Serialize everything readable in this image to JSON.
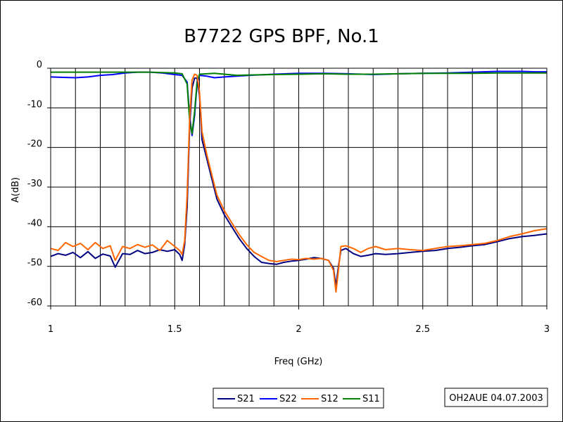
{
  "chart_data": {
    "type": "line",
    "title": "B7722 GPS BPF, No.1",
    "xlabel": "Freq (GHz)",
    "ylabel": "A(dB)",
    "xlim": [
      1,
      3
    ],
    "ylim": [
      -60,
      0
    ],
    "xticks": [
      "1",
      "1.5",
      "2",
      "2.5",
      "3"
    ],
    "yticks": [
      "0",
      "-10",
      "-20",
      "-30",
      "-40",
      "-50",
      "-60"
    ],
    "xtick_values": [
      1,
      1.5,
      2,
      2.5,
      3
    ],
    "ytick_values": [
      0,
      -10,
      -20,
      -30,
      -40,
      -50,
      -60
    ],
    "grid": true,
    "legend_position": "bottom-center",
    "annotation": "OH2AUE 04.07.2003",
    "series": [
      {
        "name": "S21",
        "color": "#000080",
        "points": [
          [
            1.0,
            -47.5
          ],
          [
            1.03,
            -46.8
          ],
          [
            1.06,
            -47.2
          ],
          [
            1.09,
            -46.5
          ],
          [
            1.12,
            -47.8
          ],
          [
            1.15,
            -46.3
          ],
          [
            1.18,
            -48.0
          ],
          [
            1.21,
            -46.9
          ],
          [
            1.24,
            -47.4
          ],
          [
            1.26,
            -50.2
          ],
          [
            1.29,
            -46.8
          ],
          [
            1.32,
            -47.0
          ],
          [
            1.35,
            -46.0
          ],
          [
            1.38,
            -46.8
          ],
          [
            1.41,
            -46.5
          ],
          [
            1.44,
            -45.8
          ],
          [
            1.47,
            -46.2
          ],
          [
            1.5,
            -45.8
          ],
          [
            1.52,
            -47.0
          ],
          [
            1.53,
            -48.5
          ],
          [
            1.54,
            -44.5
          ],
          [
            1.55,
            -35
          ],
          [
            1.56,
            -15
          ],
          [
            1.57,
            -5
          ],
          [
            1.58,
            -2.5
          ],
          [
            1.59,
            -2.5
          ],
          [
            1.6,
            -7
          ],
          [
            1.61,
            -18
          ],
          [
            1.63,
            -23
          ],
          [
            1.65,
            -28
          ],
          [
            1.67,
            -33
          ],
          [
            1.7,
            -37
          ],
          [
            1.73,
            -40
          ],
          [
            1.76,
            -43
          ],
          [
            1.79,
            -45.5
          ],
          [
            1.82,
            -47.5
          ],
          [
            1.85,
            -49
          ],
          [
            1.88,
            -49.3
          ],
          [
            1.91,
            -49.5
          ],
          [
            1.94,
            -49.0
          ],
          [
            1.97,
            -48.7
          ],
          [
            2.0,
            -48.5
          ],
          [
            2.03,
            -48.2
          ],
          [
            2.06,
            -47.8
          ],
          [
            2.09,
            -48.0
          ],
          [
            2.12,
            -48.5
          ],
          [
            2.14,
            -50.5
          ],
          [
            2.15,
            -55
          ],
          [
            2.16,
            -50
          ],
          [
            2.17,
            -46
          ],
          [
            2.19,
            -45.5
          ],
          [
            2.22,
            -46.8
          ],
          [
            2.25,
            -47.5
          ],
          [
            2.28,
            -47.2
          ],
          [
            2.31,
            -46.8
          ],
          [
            2.35,
            -47.0
          ],
          [
            2.4,
            -46.8
          ],
          [
            2.45,
            -46.5
          ],
          [
            2.5,
            -46.2
          ],
          [
            2.55,
            -46.0
          ],
          [
            2.6,
            -45.5
          ],
          [
            2.65,
            -45.2
          ],
          [
            2.7,
            -44.8
          ],
          [
            2.75,
            -44.5
          ],
          [
            2.8,
            -43.8
          ],
          [
            2.85,
            -43.0
          ],
          [
            2.9,
            -42.5
          ],
          [
            2.95,
            -42.2
          ],
          [
            3.0,
            -41.8
          ]
        ]
      },
      {
        "name": "S22",
        "color": "#0000ff",
        "points": [
          [
            1.0,
            -2.2
          ],
          [
            1.05,
            -2.3
          ],
          [
            1.1,
            -2.4
          ],
          [
            1.15,
            -2.2
          ],
          [
            1.2,
            -1.8
          ],
          [
            1.25,
            -1.6
          ],
          [
            1.3,
            -1.2
          ],
          [
            1.35,
            -1.0
          ],
          [
            1.4,
            -1.0
          ],
          [
            1.45,
            -1.2
          ],
          [
            1.5,
            -1.6
          ],
          [
            1.53,
            -1.8
          ],
          [
            1.55,
            -3.5
          ],
          [
            1.56,
            -12
          ],
          [
            1.57,
            -17
          ],
          [
            1.58,
            -12
          ],
          [
            1.59,
            -4
          ],
          [
            1.6,
            -1.8
          ],
          [
            1.63,
            -2.0
          ],
          [
            1.66,
            -2.4
          ],
          [
            1.7,
            -2.2
          ],
          [
            1.75,
            -2.0
          ],
          [
            1.8,
            -1.8
          ],
          [
            1.9,
            -1.5
          ],
          [
            2.0,
            -1.3
          ],
          [
            2.1,
            -1.3
          ],
          [
            2.2,
            -1.4
          ],
          [
            2.3,
            -1.6
          ],
          [
            2.4,
            -1.4
          ],
          [
            2.5,
            -1.3
          ],
          [
            2.6,
            -1.2
          ],
          [
            2.7,
            -1.0
          ],
          [
            2.8,
            -0.8
          ],
          [
            2.9,
            -0.8
          ],
          [
            2.95,
            -0.9
          ],
          [
            3.0,
            -0.9
          ]
        ]
      },
      {
        "name": "S12",
        "color": "#ff6600",
        "points": [
          [
            1.0,
            -45.5
          ],
          [
            1.03,
            -46.0
          ],
          [
            1.06,
            -44.0
          ],
          [
            1.09,
            -45.0
          ],
          [
            1.12,
            -44.2
          ],
          [
            1.15,
            -45.8
          ],
          [
            1.18,
            -44.0
          ],
          [
            1.21,
            -45.5
          ],
          [
            1.24,
            -44.8
          ],
          [
            1.26,
            -48.5
          ],
          [
            1.29,
            -45.0
          ],
          [
            1.32,
            -45.5
          ],
          [
            1.35,
            -44.5
          ],
          [
            1.38,
            -45.2
          ],
          [
            1.41,
            -44.6
          ],
          [
            1.44,
            -46.0
          ],
          [
            1.47,
            -43.5
          ],
          [
            1.5,
            -45.0
          ],
          [
            1.52,
            -46.0
          ],
          [
            1.53,
            -47.0
          ],
          [
            1.54,
            -43.5
          ],
          [
            1.55,
            -32
          ],
          [
            1.56,
            -13
          ],
          [
            1.57,
            -3
          ],
          [
            1.58,
            -1.5
          ],
          [
            1.59,
            -1.8
          ],
          [
            1.6,
            -6
          ],
          [
            1.61,
            -16
          ],
          [
            1.63,
            -22
          ],
          [
            1.65,
            -27
          ],
          [
            1.67,
            -32
          ],
          [
            1.7,
            -36
          ],
          [
            1.73,
            -39
          ],
          [
            1.76,
            -42
          ],
          [
            1.79,
            -44.5
          ],
          [
            1.82,
            -46.5
          ],
          [
            1.85,
            -47.5
          ],
          [
            1.88,
            -48.5
          ],
          [
            1.91,
            -48.8
          ],
          [
            1.94,
            -48.5
          ],
          [
            1.97,
            -48.2
          ],
          [
            2.0,
            -48.3
          ],
          [
            2.03,
            -48.0
          ],
          [
            2.06,
            -48.2
          ],
          [
            2.09,
            -48.0
          ],
          [
            2.12,
            -48.5
          ],
          [
            2.14,
            -51.0
          ],
          [
            2.15,
            -56.5
          ],
          [
            2.16,
            -51
          ],
          [
            2.17,
            -45
          ],
          [
            2.19,
            -44.8
          ],
          [
            2.22,
            -45.5
          ],
          [
            2.25,
            -46.5
          ],
          [
            2.28,
            -45.5
          ],
          [
            2.31,
            -45.0
          ],
          [
            2.35,
            -45.8
          ],
          [
            2.4,
            -45.5
          ],
          [
            2.45,
            -45.8
          ],
          [
            2.5,
            -46.0
          ],
          [
            2.55,
            -45.5
          ],
          [
            2.6,
            -45.0
          ],
          [
            2.65,
            -44.8
          ],
          [
            2.7,
            -44.5
          ],
          [
            2.75,
            -44.2
          ],
          [
            2.8,
            -43.5
          ],
          [
            2.85,
            -42.5
          ],
          [
            2.9,
            -41.8
          ],
          [
            2.95,
            -41.0
          ],
          [
            3.0,
            -40.5
          ]
        ]
      },
      {
        "name": "S11",
        "color": "#008000",
        "points": [
          [
            1.0,
            -1.0
          ],
          [
            1.1,
            -1.0
          ],
          [
            1.2,
            -1.0
          ],
          [
            1.3,
            -1.0
          ],
          [
            1.4,
            -1.0
          ],
          [
            1.5,
            -1.2
          ],
          [
            1.53,
            -1.4
          ],
          [
            1.55,
            -4
          ],
          [
            1.56,
            -13
          ],
          [
            1.57,
            -16.5
          ],
          [
            1.58,
            -11
          ],
          [
            1.59,
            -3.5
          ],
          [
            1.6,
            -1.5
          ],
          [
            1.63,
            -1.4
          ],
          [
            1.66,
            -1.3
          ],
          [
            1.7,
            -1.5
          ],
          [
            1.75,
            -1.8
          ],
          [
            1.8,
            -1.7
          ],
          [
            1.9,
            -1.6
          ],
          [
            2.0,
            -1.5
          ],
          [
            2.1,
            -1.4
          ],
          [
            2.2,
            -1.5
          ],
          [
            2.3,
            -1.5
          ],
          [
            2.4,
            -1.4
          ],
          [
            2.5,
            -1.3
          ],
          [
            2.6,
            -1.3
          ],
          [
            2.7,
            -1.3
          ],
          [
            2.8,
            -1.2
          ],
          [
            2.9,
            -1.2
          ],
          [
            3.0,
            -1.2
          ]
        ]
      }
    ]
  }
}
